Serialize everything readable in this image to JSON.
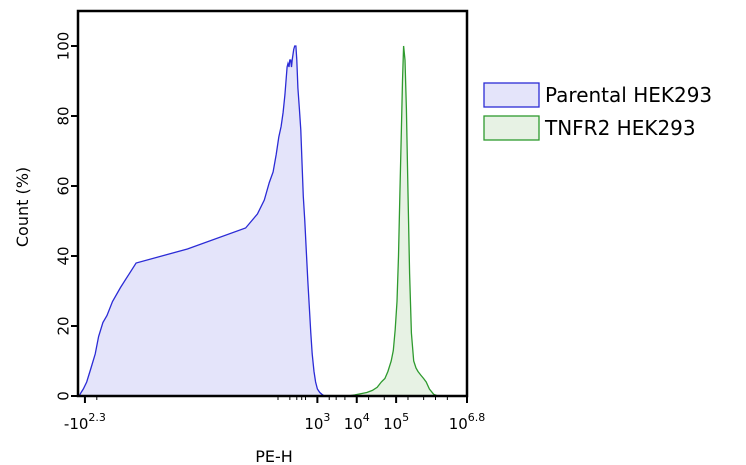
{
  "chart_data": {
    "type": "area",
    "xlabel": "PE-H",
    "ylabel": "Count  (%)",
    "xscale": "logicle",
    "ylim": [
      0,
      110
    ],
    "grid": false,
    "legend_position": "right",
    "x_ticks": [
      {
        "base": "-10",
        "exp": "2.3",
        "value": -200
      },
      {
        "base": "10",
        "exp": "3",
        "value": 1000
      },
      {
        "base": "10",
        "exp": "4",
        "value": 10000
      },
      {
        "base": "10",
        "exp": "5",
        "value": 100000
      },
      {
        "base": "10",
        "exp": "6.8",
        "value": 6309573
      }
    ],
    "y_ticks": [
      0,
      20,
      40,
      60,
      80,
      100
    ],
    "series": [
      {
        "name": "Parental HEK293",
        "color": "#2b2bd6",
        "fill": "#e4e4fa",
        "points": [
          [
            -280,
            0
          ],
          [
            -250,
            1
          ],
          [
            -220,
            2
          ],
          [
            -180,
            4
          ],
          [
            -140,
            8
          ],
          [
            -110,
            12
          ],
          [
            -90,
            17
          ],
          [
            -70,
            21
          ],
          [
            -55,
            23
          ],
          [
            -40,
            27
          ],
          [
            -25,
            31
          ],
          [
            -10,
            38
          ],
          [
            0,
            42
          ],
          [
            15,
            48
          ],
          [
            30,
            52
          ],
          [
            45,
            56
          ],
          [
            60,
            61
          ],
          [
            75,
            64
          ],
          [
            90,
            69
          ],
          [
            105,
            74
          ],
          [
            120,
            77
          ],
          [
            135,
            81
          ],
          [
            150,
            86
          ],
          [
            160,
            90
          ],
          [
            170,
            94
          ],
          [
            180,
            95
          ],
          [
            190,
            94
          ],
          [
            200,
            96
          ],
          [
            210,
            96
          ],
          [
            220,
            94
          ],
          [
            230,
            96
          ],
          [
            250,
            99
          ],
          [
            265,
            100
          ],
          [
            285,
            100
          ],
          [
            300,
            96
          ],
          [
            320,
            88
          ],
          [
            350,
            82
          ],
          [
            380,
            76
          ],
          [
            410,
            66
          ],
          [
            440,
            57
          ],
          [
            480,
            50
          ],
          [
            520,
            42
          ],
          [
            570,
            33
          ],
          [
            620,
            26
          ],
          [
            680,
            18
          ],
          [
            740,
            12
          ],
          [
            820,
            7
          ],
          [
            900,
            4
          ],
          [
            1000,
            2
          ],
          [
            1150,
            1
          ],
          [
            1300,
            0.5
          ],
          [
            1500,
            0
          ]
        ]
      },
      {
        "name": "TNFR2 HEK293",
        "color": "#2e9a2e",
        "fill": "#e7f2e4",
        "points": [
          [
            6000,
            0
          ],
          [
            9000,
            0.3
          ],
          [
            12000,
            0.6
          ],
          [
            18000,
            1
          ],
          [
            25000,
            1.6
          ],
          [
            33000,
            2.5
          ],
          [
            42000,
            4
          ],
          [
            52000,
            5
          ],
          [
            62000,
            7
          ],
          [
            75000,
            10
          ],
          [
            85000,
            13
          ],
          [
            95000,
            19
          ],
          [
            105000,
            27
          ],
          [
            115000,
            40
          ],
          [
            125000,
            58
          ],
          [
            135000,
            75
          ],
          [
            145000,
            90
          ],
          [
            155000,
            100
          ],
          [
            168000,
            96
          ],
          [
            182000,
            82
          ],
          [
            200000,
            58
          ],
          [
            220000,
            35
          ],
          [
            245000,
            18
          ],
          [
            280000,
            10
          ],
          [
            320000,
            8
          ],
          [
            360000,
            7
          ],
          [
            420000,
            6
          ],
          [
            500000,
            5
          ],
          [
            580000,
            4
          ],
          [
            700000,
            2
          ],
          [
            900000,
            0.5
          ],
          [
            1150000,
            0
          ]
        ]
      }
    ]
  }
}
